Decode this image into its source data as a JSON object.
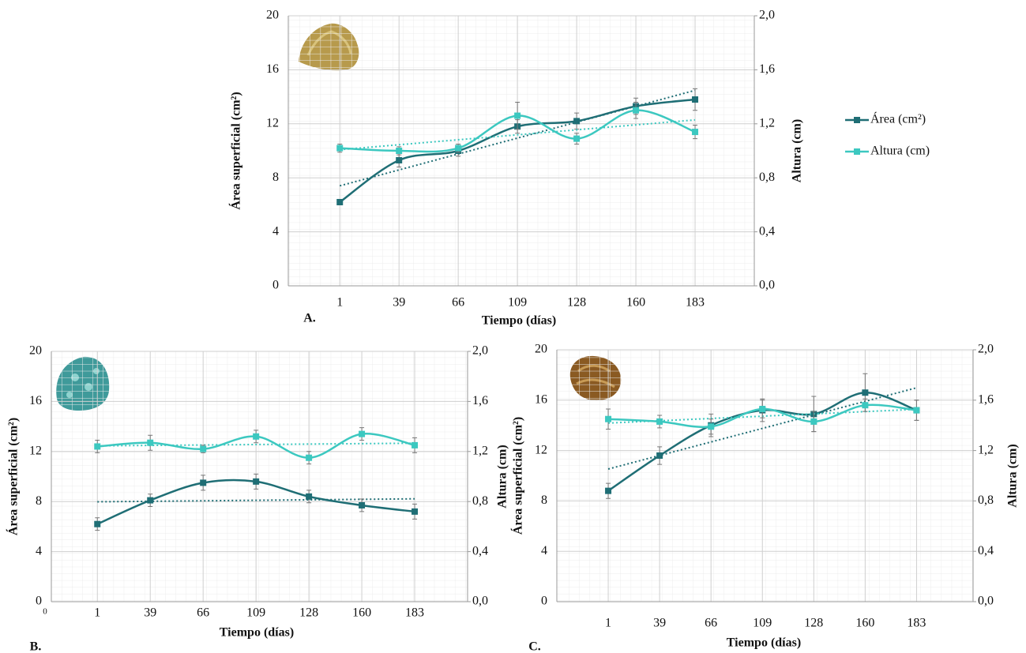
{
  "chart_data": [
    {
      "type": "line",
      "panel_label": "A.",
      "x_label": "Tiempo (días)",
      "y_label": "Área superficial (cm²)",
      "y2_label": "Altura (cm)",
      "categories": [
        "1",
        "39",
        "66",
        "109",
        "128",
        "160",
        "183"
      ],
      "ylim": [
        0,
        20
      ],
      "yticks": [
        0,
        4,
        8,
        12,
        16,
        20
      ],
      "y2lim": [
        0,
        2
      ],
      "y2ticks": [
        {
          "value": 0,
          "label": "0,0"
        },
        {
          "value": 0.4,
          "label": "0,4"
        },
        {
          "value": 0.8,
          "label": "0,8"
        },
        {
          "value": 1.2,
          "label": "1,2"
        },
        {
          "value": 1.6,
          "label": "1,6"
        },
        {
          "value": 2,
          "label": "2,0"
        }
      ],
      "grid": true,
      "legend": "right",
      "series": [
        {
          "name": "Área (cm²)",
          "color": "#1f6e75",
          "values": [
            6.2,
            9.3,
            10.0,
            11.8,
            12.2,
            13.3,
            13.8
          ],
          "errors": [
            0.2,
            0.5,
            0.4,
            0.5,
            0.6,
            0.6,
            0.8
          ],
          "trendline": true
        },
        {
          "name": "Altura (cm)",
          "color": "#3cc8c0",
          "axis": "y2",
          "values": [
            1.02,
            1.0,
            1.02,
            1.26,
            1.09,
            1.3,
            1.14
          ],
          "errors": [
            0.03,
            0.03,
            0.03,
            0.1,
            0.04,
            0.06,
            0.05
          ],
          "trendline": true
        }
      ]
    },
    {
      "type": "line",
      "panel_label": "B.",
      "x_label": "Tiempo (días)",
      "y_label": "Área superficial (cm²)",
      "y2_label": "Altura (cm)",
      "origin_label": "0",
      "categories": [
        "1",
        "39",
        "66",
        "109",
        "128",
        "160",
        "183"
      ],
      "ylim": [
        0,
        20
      ],
      "yticks": [
        0,
        4,
        8,
        12,
        16,
        20
      ],
      "y2lim": [
        0,
        2
      ],
      "y2ticks": [
        {
          "value": 0,
          "label": "0,0"
        },
        {
          "value": 0.4,
          "label": "0,4"
        },
        {
          "value": 0.8,
          "label": "0,8"
        },
        {
          "value": 1.2,
          "label": "1,2"
        },
        {
          "value": 1.6,
          "label": "1,6"
        },
        {
          "value": 2,
          "label": "2,0"
        }
      ],
      "grid": true,
      "series": [
        {
          "color": "#1f6e75",
          "values": [
            6.2,
            8.1,
            9.5,
            9.6,
            8.4,
            7.7,
            7.2
          ],
          "errors": [
            0.5,
            0.5,
            0.6,
            0.6,
            0.5,
            0.5,
            0.6
          ],
          "trendline": true
        },
        {
          "color": "#3cc8c0",
          "axis": "y2",
          "values": [
            1.24,
            1.27,
            1.22,
            1.32,
            1.15,
            1.34,
            1.25
          ],
          "errors": [
            0.05,
            0.06,
            0.03,
            0.05,
            0.05,
            0.05,
            0.06
          ],
          "trendline": true
        }
      ]
    },
    {
      "type": "line",
      "panel_label": "C.",
      "x_label": "Tiempo (días)",
      "y_label": "Área superficial (cm²)",
      "y2_label": "Altura (cm)",
      "categories": [
        "1",
        "39",
        "66",
        "109",
        "128",
        "160",
        "183"
      ],
      "ylim": [
        0,
        20
      ],
      "yticks": [
        0,
        4,
        8,
        12,
        16,
        20
      ],
      "y2lim": [
        0,
        2
      ],
      "y2ticks": [
        {
          "value": 0,
          "label": "0,0"
        },
        {
          "value": 0.4,
          "label": "0,4"
        },
        {
          "value": 0.8,
          "label": "0,8"
        },
        {
          "value": 1.2,
          "label": "1,2"
        },
        {
          "value": 1.6,
          "label": "1,6"
        },
        {
          "value": 2,
          "label": "2,0"
        }
      ],
      "grid": true,
      "series": [
        {
          "color": "#1f6e75",
          "values": [
            8.8,
            11.6,
            14.0,
            15.2,
            14.9,
            16.6,
            15.2
          ],
          "errors": [
            0.6,
            0.7,
            0.9,
            0.9,
            1.4,
            1.5,
            0.8
          ],
          "trendline": true
        },
        {
          "color": "#3cc8c0",
          "axis": "y2",
          "values": [
            1.45,
            1.43,
            1.39,
            1.53,
            1.43,
            1.56,
            1.52
          ],
          "errors": [
            0.08,
            0.05,
            0.06,
            0.07,
            0.08,
            0.05,
            0.08
          ],
          "trendline": true
        }
      ]
    }
  ]
}
